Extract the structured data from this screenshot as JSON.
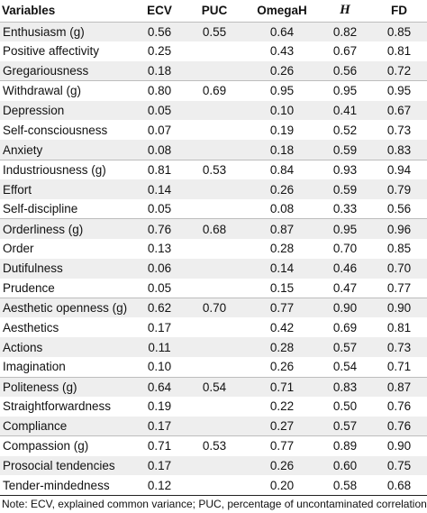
{
  "table": {
    "headers": [
      "Variables",
      "ECV",
      "PUC",
      "OmegaH",
      "H",
      "FD"
    ],
    "rows": [
      {
        "name": "Enthusiasm (g)",
        "ecv": "0.56",
        "puc": "0.55",
        "omega": "0.64",
        "h": "0.82",
        "fd": "0.85",
        "group_start": true,
        "shade": true
      },
      {
        "name": "Positive affectivity",
        "ecv": "0.25",
        "puc": "",
        "omega": "0.43",
        "h": "0.67",
        "fd": "0.81",
        "group_start": false,
        "shade": false
      },
      {
        "name": "Gregariousness",
        "ecv": "0.18",
        "puc": "",
        "omega": "0.26",
        "h": "0.56",
        "fd": "0.72",
        "group_start": false,
        "shade": true
      },
      {
        "name": "Withdrawal (g)",
        "ecv": "0.80",
        "puc": "0.69",
        "omega": "0.95",
        "h": "0.95",
        "fd": "0.95",
        "group_start": true,
        "shade": false
      },
      {
        "name": "Depression",
        "ecv": "0.05",
        "puc": "",
        "omega": "0.10",
        "h": "0.41",
        "fd": "0.67",
        "group_start": false,
        "shade": true
      },
      {
        "name": "Self-consciousness",
        "ecv": "0.07",
        "puc": "",
        "omega": "0.19",
        "h": "0.52",
        "fd": "0.73",
        "group_start": false,
        "shade": false
      },
      {
        "name": "Anxiety",
        "ecv": "0.08",
        "puc": "",
        "omega": "0.18",
        "h": "0.59",
        "fd": "0.83",
        "group_start": false,
        "shade": true
      },
      {
        "name": "Industriousness (g)",
        "ecv": "0.81",
        "puc": "0.53",
        "omega": "0.84",
        "h": "0.93",
        "fd": "0.94",
        "group_start": true,
        "shade": false
      },
      {
        "name": "Effort",
        "ecv": "0.14",
        "puc": "",
        "omega": "0.26",
        "h": "0.59",
        "fd": "0.79",
        "group_start": false,
        "shade": true
      },
      {
        "name": "Self-discipline",
        "ecv": "0.05",
        "puc": "",
        "omega": "0.08",
        "h": "0.33",
        "fd": "0.56",
        "group_start": false,
        "shade": false
      },
      {
        "name": "Orderliness (g)",
        "ecv": "0.76",
        "puc": "0.68",
        "omega": "0.87",
        "h": "0.95",
        "fd": "0.96",
        "group_start": true,
        "shade": true
      },
      {
        "name": "Order",
        "ecv": "0.13",
        "puc": "",
        "omega": "0.28",
        "h": "0.70",
        "fd": "0.85",
        "group_start": false,
        "shade": false
      },
      {
        "name": "Dutifulness",
        "ecv": "0.06",
        "puc": "",
        "omega": "0.14",
        "h": "0.46",
        "fd": "0.70",
        "group_start": false,
        "shade": true
      },
      {
        "name": "Prudence",
        "ecv": "0.05",
        "puc": "",
        "omega": "0.15",
        "h": "0.47",
        "fd": "0.77",
        "group_start": false,
        "shade": false
      },
      {
        "name": "Aesthetic openness (g)",
        "ecv": "0.62",
        "puc": "0.70",
        "omega": "0.77",
        "h": "0.90",
        "fd": "0.90",
        "group_start": true,
        "shade": true
      },
      {
        "name": "Aesthetics",
        "ecv": "0.17",
        "puc": "",
        "omega": "0.42",
        "h": "0.69",
        "fd": "0.81",
        "group_start": false,
        "shade": false
      },
      {
        "name": "Actions",
        "ecv": "0.11",
        "puc": "",
        "omega": "0.28",
        "h": "0.57",
        "fd": "0.73",
        "group_start": false,
        "shade": true
      },
      {
        "name": "Imagination",
        "ecv": "0.10",
        "puc": "",
        "omega": "0.26",
        "h": "0.54",
        "fd": "0.71",
        "group_start": false,
        "shade": false
      },
      {
        "name": "Politeness (g)",
        "ecv": "0.64",
        "puc": "0.54",
        "omega": "0.71",
        "h": "0.83",
        "fd": "0.87",
        "group_start": true,
        "shade": true
      },
      {
        "name": "Straightforwardness",
        "ecv": "0.19",
        "puc": "",
        "omega": "0.22",
        "h": "0.50",
        "fd": "0.76",
        "group_start": false,
        "shade": false
      },
      {
        "name": "Compliance",
        "ecv": "0.17",
        "puc": "",
        "omega": "0.27",
        "h": "0.57",
        "fd": "0.76",
        "group_start": false,
        "shade": true
      },
      {
        "name": "Compassion (g)",
        "ecv": "0.71",
        "puc": "0.53",
        "omega": "0.77",
        "h": "0.89",
        "fd": "0.90",
        "group_start": true,
        "shade": false
      },
      {
        "name": "Prosocial tendencies",
        "ecv": "0.17",
        "puc": "",
        "omega": "0.26",
        "h": "0.60",
        "fd": "0.75",
        "group_start": false,
        "shade": true
      },
      {
        "name": "Tender-mindedness",
        "ecv": "0.12",
        "puc": "",
        "omega": "0.20",
        "h": "0.58",
        "fd": "0.68",
        "group_start": false,
        "shade": false
      }
    ]
  },
  "note": "Note: ECV, explained common variance; PUC, percentage of uncontaminated correlations; H,"
}
